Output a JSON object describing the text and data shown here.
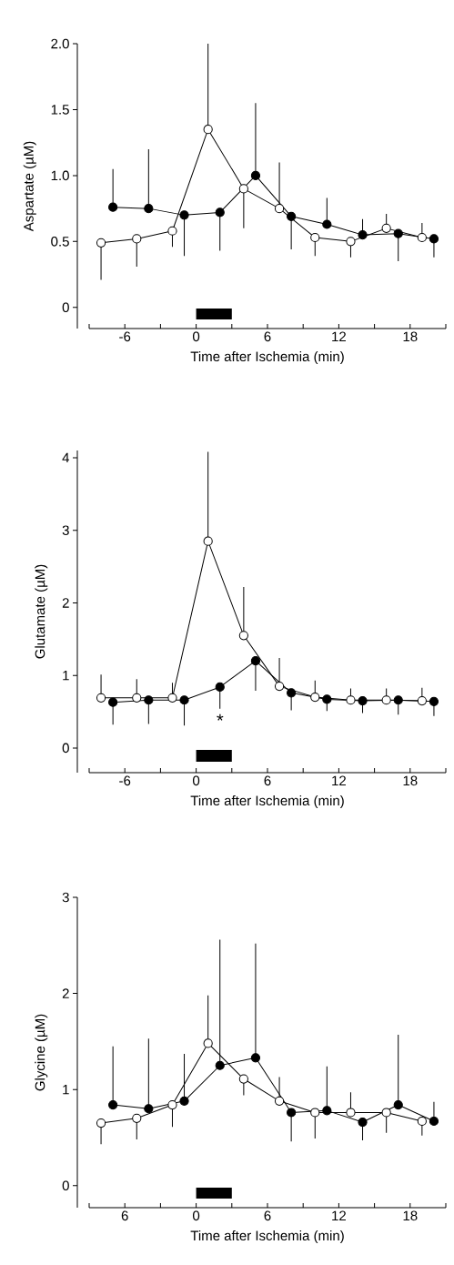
{
  "chart_data": [
    {
      "type": "line",
      "ylabel": "Aspartate (µM)",
      "xlabel": "Time after Ischemia (min)",
      "xlim": [
        -9,
        21
      ],
      "xticks": [
        {
          "value": -9,
          "label": null
        },
        -6,
        {
          "value": -3,
          "label": null
        },
        0,
        {
          "value": 3,
          "label": null
        },
        6,
        {
          "value": 9,
          "label": null
        },
        12,
        {
          "value": 15,
          "label": null
        },
        18,
        {
          "value": 21,
          "label": null
        }
      ],
      "ylim": [
        -0.16,
        2.0
      ],
      "yticks": [
        0,
        {
          "value": 0.5,
          "label": "0.5"
        },
        {
          "value": 1,
          "label": "1.0"
        },
        {
          "value": 1.5,
          "label": "1.5"
        },
        {
          "value": 2,
          "label": "2.0"
        }
      ],
      "marker": "circle",
      "line_style": "solid",
      "series": [
        {
          "color": "#ffffff",
          "x": [
            -8,
            -5,
            -2,
            1,
            4,
            7,
            10,
            13,
            16,
            19
          ],
          "values": [
            0.49,
            0.52,
            0.58,
            1.35,
            0.9,
            0.75,
            0.53,
            0.5,
            0.6,
            0.53
          ],
          "errors": [
            [
              0.21,
              0.49
            ],
            [
              0.31,
              0.52
            ],
            [
              0.46,
              0.58
            ],
            [
              1.35,
              2.0
            ],
            [
              0.6,
              0.9
            ],
            [
              0.75,
              1.1
            ],
            [
              0.39,
              0.53
            ],
            [
              0.38,
              0.5
            ],
            [
              0.6,
              0.71
            ],
            [
              0.53,
              0.64
            ]
          ]
        },
        {
          "color": "#000000",
          "x": [
            -7,
            -4,
            -1,
            2,
            5,
            8,
            11,
            14,
            17,
            20
          ],
          "values": [
            0.76,
            0.75,
            0.7,
            0.72,
            1.0,
            0.69,
            0.63,
            0.55,
            0.56,
            0.52
          ],
          "errors": [
            [
              0.76,
              1.05
            ],
            [
              0.75,
              1.2
            ],
            [
              0.39,
              0.7
            ],
            [
              0.43,
              0.72
            ],
            [
              1.0,
              1.55
            ],
            [
              0.44,
              0.69
            ],
            [
              0.63,
              0.83
            ],
            [
              0.55,
              0.67
            ],
            [
              0.35,
              0.56
            ],
            [
              0.38,
              0.52
            ]
          ]
        }
      ]
    },
    {
      "type": "line",
      "ylabel": "Glutamate (µM)",
      "xlabel": "Time after Ischemia (min)",
      "xlim": [
        -9,
        21
      ],
      "xticks": [
        {
          "value": -9,
          "label": null
        },
        -6,
        {
          "value": -3,
          "label": null
        },
        0,
        {
          "value": 3,
          "label": null
        },
        6,
        {
          "value": 9,
          "label": null
        },
        12,
        {
          "value": 15,
          "label": null
        },
        18,
        {
          "value": 21,
          "label": null
        }
      ],
      "ylim": [
        -0.34,
        4.1
      ],
      "yticks": [
        0,
        1,
        2,
        3,
        4
      ],
      "marker": "circle",
      "line_style": "solid",
      "annotations": [
        "*"
      ],
      "series": [
        {
          "color": "#ffffff",
          "x": [
            -8,
            -5,
            -2,
            1,
            4,
            7,
            10,
            13,
            16,
            19
          ],
          "values": [
            0.69,
            0.69,
            0.69,
            2.85,
            1.55,
            0.85,
            0.7,
            0.66,
            0.66,
            0.65
          ],
          "errors": [
            [
              0.69,
              1.01
            ],
            [
              0.69,
              0.95
            ],
            [
              0.69,
              0.9
            ],
            [
              2.85,
              4.08
            ],
            [
              1.55,
              2.22
            ],
            [
              0.85,
              1.24
            ],
            [
              0.7,
              0.93
            ],
            [
              0.66,
              0.82
            ],
            [
              0.66,
              0.82
            ],
            [
              0.65,
              0.83
            ]
          ]
        },
        {
          "color": "#000000",
          "x": [
            -7,
            -4,
            -1,
            2,
            5,
            8,
            11,
            14,
            17,
            20
          ],
          "values": [
            0.63,
            0.66,
            0.66,
            0.84,
            1.2,
            0.76,
            0.67,
            0.65,
            0.66,
            0.64
          ],
          "errors": [
            [
              0.32,
              0.63
            ],
            [
              0.33,
              0.66
            ],
            [
              0.31,
              0.66
            ],
            [
              0.54,
              0.84
            ],
            [
              0.79,
              1.2
            ],
            [
              0.52,
              0.76
            ],
            [
              0.51,
              0.67
            ],
            [
              0.48,
              0.65
            ],
            [
              0.46,
              0.66
            ],
            [
              0.44,
              0.64
            ]
          ]
        }
      ]
    },
    {
      "type": "line",
      "ylabel": "Glycine (µM)",
      "xlabel": "Time after Ischemia (min)",
      "xlim": [
        -9,
        21
      ],
      "xticks": [
        {
          "value": -9,
          "label": null
        },
        {
          "value": -6,
          "label": "6"
        },
        {
          "value": -3,
          "label": null
        },
        0,
        {
          "value": 3,
          "label": null
        },
        6,
        {
          "value": 9,
          "label": null
        },
        12,
        {
          "value": 15,
          "label": null
        },
        18,
        {
          "value": 21,
          "label": null
        }
      ],
      "ylim": [
        -0.23,
        3
      ],
      "yticks": [
        0,
        1,
        2,
        3
      ],
      "marker": "circle",
      "line_style": "solid",
      "series": [
        {
          "color": "#ffffff",
          "x": [
            -8,
            -5,
            -2,
            1,
            4,
            7,
            10,
            13,
            16,
            19
          ],
          "values": [
            0.65,
            0.7,
            0.84,
            1.48,
            1.11,
            0.88,
            0.76,
            0.76,
            0.76,
            0.67
          ],
          "errors": [
            [
              0.43,
              0.65
            ],
            [
              0.48,
              0.7
            ],
            [
              0.61,
              0.84
            ],
            [
              1.48,
              1.98
            ],
            [
              0.94,
              1.11
            ],
            [
              0.88,
              1.13
            ],
            [
              0.49,
              0.76
            ],
            [
              0.76,
              0.97
            ],
            [
              0.55,
              0.76
            ],
            [
              0.52,
              0.67
            ]
          ]
        },
        {
          "color": "#000000",
          "x": [
            -7,
            -4,
            -1,
            2,
            5,
            8,
            11,
            14,
            17,
            20
          ],
          "values": [
            0.84,
            0.8,
            0.88,
            1.25,
            1.33,
            0.76,
            0.78,
            0.66,
            0.84,
            0.67
          ],
          "errors": [
            [
              0.84,
              1.45
            ],
            [
              0.8,
              1.53
            ],
            [
              0.88,
              1.37
            ],
            [
              1.25,
              2.56
            ],
            [
              1.33,
              2.52
            ],
            [
              0.46,
              0.76
            ],
            [
              0.78,
              1.24
            ],
            [
              0.47,
              0.66
            ],
            [
              0.84,
              1.57
            ],
            [
              0.67,
              0.87
            ]
          ]
        }
      ]
    }
  ]
}
